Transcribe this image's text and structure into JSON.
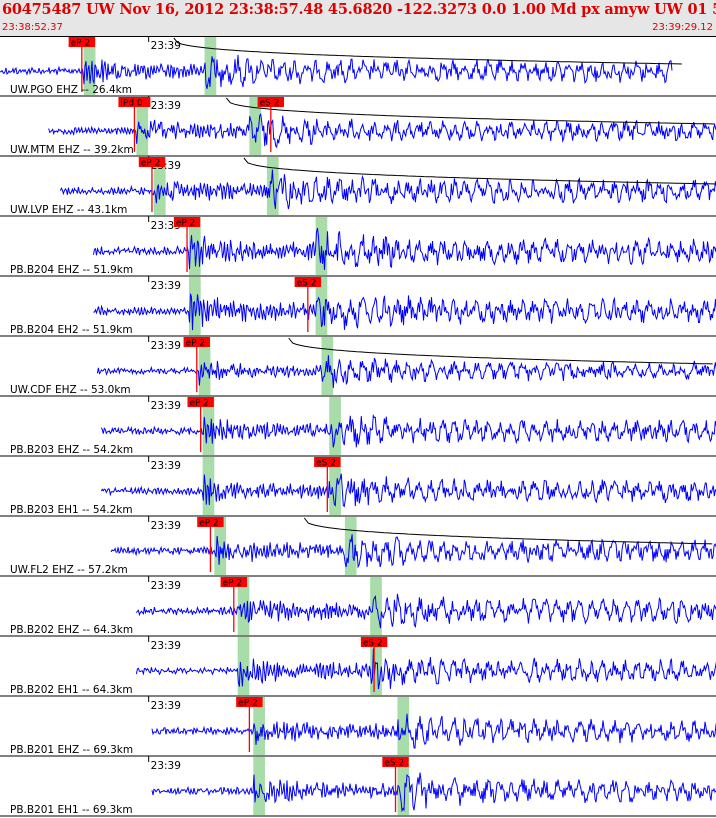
{
  "header": {
    "title": "60475487 UW Nov 16, 2012 23:38:57.48   45.6820 -122.3273  0.0 1.00 Md px amyw UW 01   5",
    "start_time": "23:38:52.37",
    "end_time": "23:39:29.12"
  },
  "colors": {
    "header_text": "#dd0000",
    "header_bg": "#e6e6e6",
    "trace": "#0000ff",
    "pick": "#ff0000",
    "window": "#a8dca8",
    "grid": "#000000"
  },
  "chart_data": {
    "type": "line",
    "title": "60475487 UW Nov 16, 2012 23:38:57.48   45.6820 -122.3273  0.0 1.00 Md px amyw UW 01   5",
    "x_range": [
      "23:38:52.37",
      "23:39:29.12"
    ],
    "tick_label": "23:39",
    "tick_time": "23:39:00",
    "traces": [
      {
        "label": "UW.PGO EHZ -- 26.4km",
        "p_pick": "eP 2",
        "p_time": 4.2,
        "s_pick": "",
        "s_time": null,
        "win_p": [
          4.3,
          4.9
        ],
        "win_s": [
          10.5,
          11.1
        ],
        "start": 0.0,
        "end": 34.5,
        "amp": 0.7,
        "coda": true
      },
      {
        "label": "UW.MTM EHZ -- 39.2km",
        "p_pick": "iPd 0",
        "p_time": 6.9,
        "s_pick": "eS 2",
        "s_time": 13.9,
        "win_p": [
          7.0,
          7.6
        ],
        "win_s": [
          12.8,
          13.4
        ],
        "start": 2.5,
        "end": 37.5,
        "amp": 0.65,
        "coda": true
      },
      {
        "label": "UW.LVP EHZ -- 43.1km",
        "p_pick": "eP 2",
        "p_time": 7.8,
        "s_pick": "",
        "s_time": null,
        "win_p": [
          7.9,
          8.5
        ],
        "win_s": [
          13.7,
          14.3
        ],
        "start": 3.1,
        "end": 38.3,
        "amp": 0.75,
        "coda": true
      },
      {
        "label": "PB.B204 EHZ -- 51.9km",
        "p_pick": "eP 2",
        "p_time": 9.6,
        "s_pick": "",
        "s_time": null,
        "win_p": [
          9.7,
          10.3
        ],
        "win_s": [
          16.2,
          16.8
        ],
        "start": 4.8,
        "end": 40.0,
        "amp": 0.8,
        "coda": false
      },
      {
        "label": "PB.B204 EH2 -- 51.9km",
        "p_pick": "",
        "p_time": null,
        "s_pick": "eS 2",
        "s_time": 15.8,
        "win_p": [
          9.7,
          10.3
        ],
        "win_s": [
          16.2,
          16.8
        ],
        "start": 4.8,
        "end": 40.0,
        "amp": 0.8,
        "coda": false
      },
      {
        "label": "UW.CDF EHZ -- 53.0km",
        "p_pick": "eP 2",
        "p_time": 10.1,
        "s_pick": "",
        "s_time": null,
        "win_p": [
          10.2,
          10.8
        ],
        "win_s": [
          16.5,
          17.1
        ],
        "start": 5.0,
        "end": 40.2,
        "amp": 0.6,
        "coda": true
      },
      {
        "label": "PB.B203 EHZ -- 54.2km",
        "p_pick": "eP 2",
        "p_time": 10.3,
        "s_pick": "",
        "s_time": null,
        "win_p": [
          10.4,
          11.0
        ],
        "win_s": [
          16.9,
          17.5
        ],
        "start": 5.2,
        "end": 40.4,
        "amp": 0.7,
        "coda": false
      },
      {
        "label": "PB.B203 EH1 -- 54.2km",
        "p_pick": "",
        "p_time": null,
        "s_pick": "eS 2",
        "s_time": 16.8,
        "win_p": [
          10.4,
          11.0
        ],
        "win_s": [
          16.9,
          17.5
        ],
        "start": 5.2,
        "end": 40.4,
        "amp": 0.7,
        "coda": false
      },
      {
        "label": "UW.FL2 EHZ -- 57.2km",
        "p_pick": "eP 2",
        "p_time": 10.8,
        "s_pick": "",
        "s_time": null,
        "win_p": [
          11.0,
          11.6
        ],
        "win_s": [
          17.7,
          18.3
        ],
        "start": 5.7,
        "end": 40.9,
        "amp": 0.7,
        "coda": true
      },
      {
        "label": "PB.B202 EHZ -- 64.3km",
        "p_pick": "eP 2",
        "p_time": 12.0,
        "s_pick": "",
        "s_time": null,
        "win_p": [
          12.2,
          12.8
        ],
        "win_s": [
          19.0,
          19.6
        ],
        "start": 7.0,
        "end": 40.9,
        "amp": 0.75,
        "coda": false
      },
      {
        "label": "PB.B202 EH1 -- 64.3km",
        "p_pick": "",
        "p_time": null,
        "s_pick": "eS 2",
        "s_time": 19.2,
        "win_p": [
          12.2,
          12.8
        ],
        "win_s": [
          19.0,
          19.6
        ],
        "start": 7.0,
        "end": 40.9,
        "amp": 0.75,
        "coda": false
      },
      {
        "label": "PB.B201 EHZ -- 69.3km",
        "p_pick": "eP 2",
        "p_time": 12.8,
        "s_pick": "",
        "s_time": null,
        "win_p": [
          13.0,
          13.6
        ],
        "win_s": [
          20.4,
          21.0
        ],
        "start": 7.8,
        "end": 40.9,
        "amp": 0.7,
        "coda": false
      },
      {
        "label": "PB.B201 EH1 -- 69.3km",
        "p_pick": "",
        "p_time": null,
        "s_pick": "eS 2",
        "s_time": 20.3,
        "win_p": [
          13.0,
          13.6
        ],
        "win_s": [
          20.4,
          21.0
        ],
        "start": 7.8,
        "end": 40.9,
        "amp": 0.7,
        "coda": false
      }
    ]
  }
}
